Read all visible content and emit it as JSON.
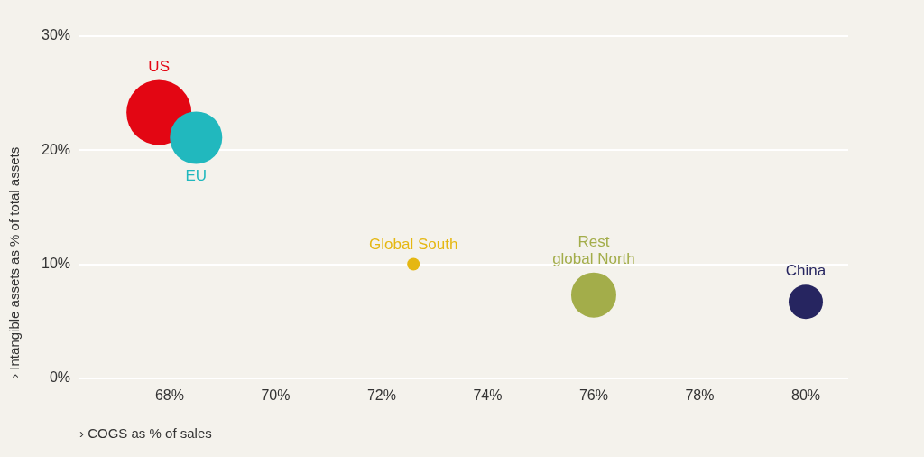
{
  "chart_data": {
    "type": "bubble",
    "x_label": "› COGS as % of sales",
    "y_label": "› Intangible assets as % of total assets",
    "names": [
      "US",
      "EU",
      "Global South",
      "Rest\nglobal North",
      "China"
    ],
    "x": [
      67.8,
      68.5,
      72.6,
      76.0,
      80.0
    ],
    "y": [
      23.3,
      21.1,
      10.0,
      7.3,
      6.7
    ],
    "sizes": [
      36,
      29,
      7,
      25,
      19
    ],
    "colors": [
      "#e30613",
      "#21b8be",
      "#e5b712",
      "#a3ad4a",
      "#262560"
    ],
    "xlim": [
      66.3,
      80.8
    ],
    "xticks": [
      {
        "value": 68,
        "label": "68%"
      },
      {
        "value": 70,
        "label": "70%"
      },
      {
        "value": 72,
        "label": "72%"
      },
      {
        "value": 74,
        "label": "74%"
      },
      {
        "value": 76,
        "label": "76%"
      },
      {
        "value": 78,
        "label": "78%"
      },
      {
        "value": 80,
        "label": "80%"
      }
    ],
    "ylim": [
      0,
      30
    ],
    "yticks": [
      {
        "value": 0,
        "label": "0%"
      },
      {
        "value": 10,
        "label": "10%"
      },
      {
        "value": 20,
        "label": "20%"
      },
      {
        "value": 30,
        "label": "30%"
      }
    ],
    "grid": "y"
  }
}
